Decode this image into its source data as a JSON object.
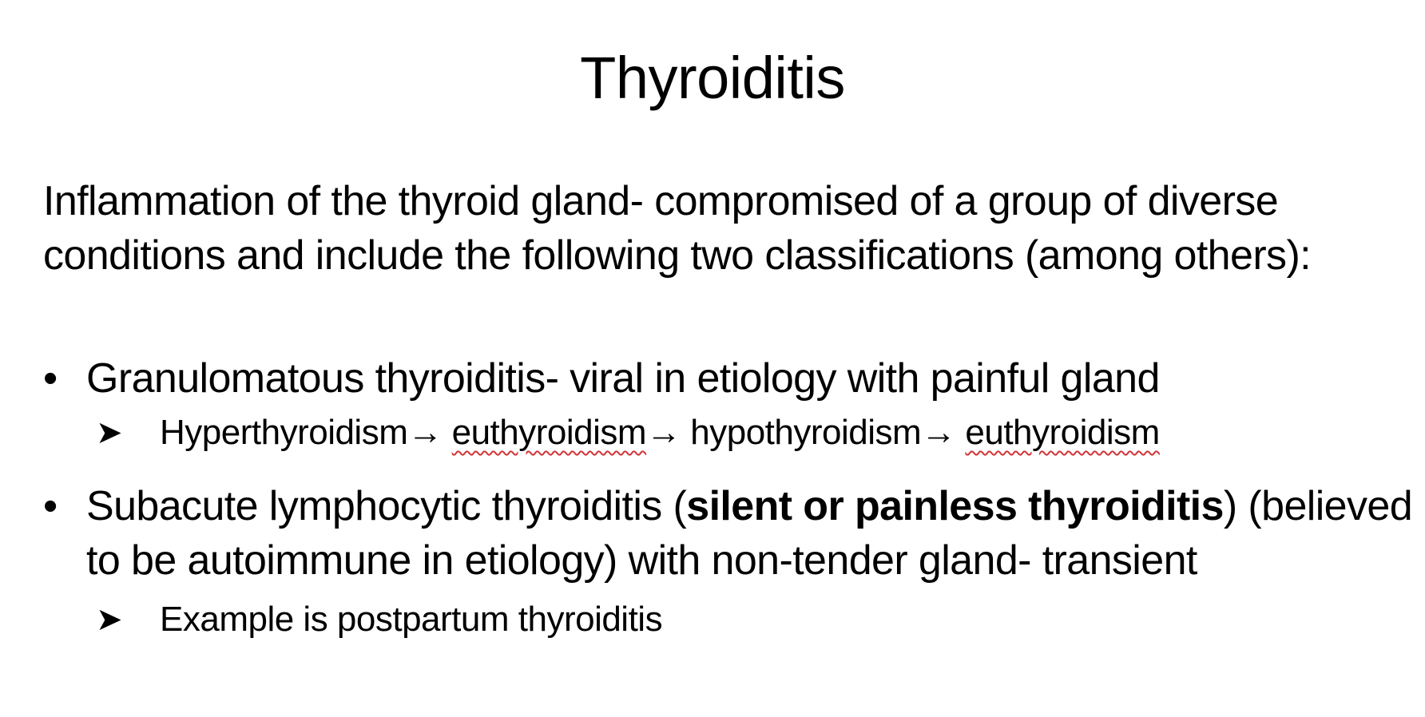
{
  "slide": {
    "title": "Thyroiditis",
    "intro": "Inflammation of the thyroid gland- compromised of a group of diverse conditions and include the following two classifications (among others):",
    "bullet_glyph": "•",
    "arrow_glyph": "➤",
    "bullet1": {
      "text": "Granulomatous thyroiditis- viral in etiology with painful gland",
      "sub": {
        "part1": "Hyperthyroidism→ ",
        "part2": "euthyroidism",
        "part3": "→ hypothyroidism→ ",
        "part4": "euthyroidism"
      }
    },
    "bullet2": {
      "text_before": "Subacute lymphocytic thyroiditis (",
      "text_bold": "silent or painless thyroiditis",
      "text_after": ") (believed to be autoimmune in etiology) with non-tender gland- transient",
      "sub": "Example is postpartum thyroiditis"
    },
    "spellcheck_color": "#d13438"
  }
}
